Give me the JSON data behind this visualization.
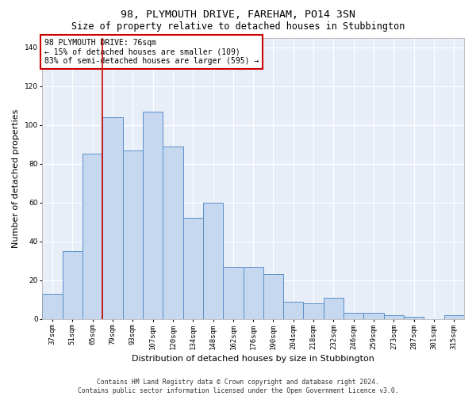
{
  "title": "98, PLYMOUTH DRIVE, FAREHAM, PO14 3SN",
  "subtitle": "Size of property relative to detached houses in Stubbington",
  "xlabel": "Distribution of detached houses by size in Stubbington",
  "ylabel": "Number of detached properties",
  "categories": [
    "37sqm",
    "51sqm",
    "65sqm",
    "79sqm",
    "93sqm",
    "107sqm",
    "120sqm",
    "134sqm",
    "148sqm",
    "162sqm",
    "176sqm",
    "190sqm",
    "204sqm",
    "218sqm",
    "232sqm",
    "246sqm",
    "259sqm",
    "273sqm",
    "287sqm",
    "301sqm",
    "315sqm"
  ],
  "bar_values": [
    13,
    35,
    85,
    104,
    87,
    107,
    89,
    52,
    60,
    27,
    27,
    23,
    9,
    8,
    11,
    3,
    3,
    2,
    1,
    0,
    2
  ],
  "bar_color": "#c5d8f0",
  "bar_edge_color": "#5b8fc9",
  "bg_color": "#e8eef8",
  "grid_color": "#ffffff",
  "vline_color": "#cc0000",
  "annotation_text": "98 PLYMOUTH DRIVE: 76sqm\n← 15% of detached houses are smaller (109)\n83% of semi-detached houses are larger (595) →",
  "annotation_box_color": "#ffffff",
  "annotation_box_edge": "#cc0000",
  "footnote": "Contains HM Land Registry data © Crown copyright and database right 2024.\nContains public sector information licensed under the Open Government Licence v3.0.",
  "ylim": [
    0,
    145
  ],
  "title_fontsize": 9.5,
  "subtitle_fontsize": 8.5,
  "ylabel_fontsize": 8,
  "xlabel_fontsize": 8,
  "tick_fontsize": 6.5,
  "annotation_fontsize": 7,
  "footnote_fontsize": 5.8
}
